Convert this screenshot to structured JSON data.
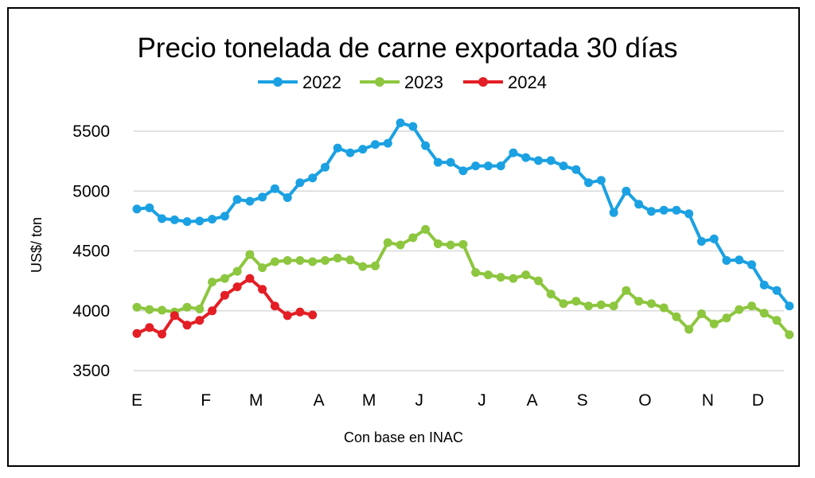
{
  "chart_data": {
    "type": "line",
    "title": "Precio tonelada de carne exportada 30 días",
    "ylabel": "US$/ ton",
    "xlabel": "Con base en INAC",
    "ylim": [
      3500,
      5700
    ],
    "yticks": [
      3500,
      4000,
      4500,
      5000,
      5500
    ],
    "x_range": [
      1,
      52
    ],
    "month_ticks": [
      {
        "label": "E",
        "week": 1
      },
      {
        "label": "F",
        "week": 6.5
      },
      {
        "label": "M",
        "week": 10.5
      },
      {
        "label": "A",
        "week": 15.5
      },
      {
        "label": "M",
        "week": 19.5
      },
      {
        "label": "J",
        "week": 23.5
      },
      {
        "label": "J",
        "week": 28.5
      },
      {
        "label": "A",
        "week": 32.5
      },
      {
        "label": "S",
        "week": 36.5
      },
      {
        "label": "O",
        "week": 41.5
      },
      {
        "label": "N",
        "week": 46.5
      },
      {
        "label": "D",
        "week": 50.5
      }
    ],
    "legend_position": "top",
    "grid": true,
    "series": [
      {
        "name": "2022",
        "color": "#1BA1E2",
        "values": [
          4850,
          4860,
          4770,
          4760,
          4745,
          4750,
          4765,
          4790,
          4930,
          4915,
          4950,
          5020,
          4945,
          5070,
          5110,
          5200,
          5360,
          5320,
          5350,
          5390,
          5400,
          5570,
          5540,
          5380,
          5240,
          5240,
          5170,
          5210,
          5210,
          5210,
          5320,
          5280,
          5255,
          5255,
          5210,
          5180,
          5070,
          5090,
          4820,
          5000,
          4890,
          4830,
          4840,
          4840,
          4810,
          4580,
          4600,
          4420,
          4425,
          4385,
          4215,
          4170,
          4040
        ]
      },
      {
        "name": "2023",
        "color": "#8DC63F",
        "values": [
          4030,
          4010,
          4005,
          3990,
          4030,
          4015,
          4240,
          4270,
          4330,
          4470,
          4360,
          4410,
          4420,
          4420,
          4410,
          4420,
          4440,
          4425,
          4370,
          4375,
          4570,
          4550,
          4610,
          4680,
          4560,
          4550,
          4555,
          4320,
          4300,
          4280,
          4270,
          4300,
          4250,
          4140,
          4060,
          4080,
          4040,
          4050,
          4040,
          4170,
          4080,
          4060,
          4025,
          3950,
          3845,
          3975,
          3890,
          3940,
          4010,
          4040,
          3980,
          3920,
          3800
        ]
      },
      {
        "name": "2024",
        "color": "#E31E24",
        "values": [
          3810,
          3860,
          3805,
          3960,
          3880,
          3920,
          4000,
          4130,
          4200,
          4270,
          4180,
          4040,
          3960,
          3990,
          3965
        ]
      }
    ]
  }
}
